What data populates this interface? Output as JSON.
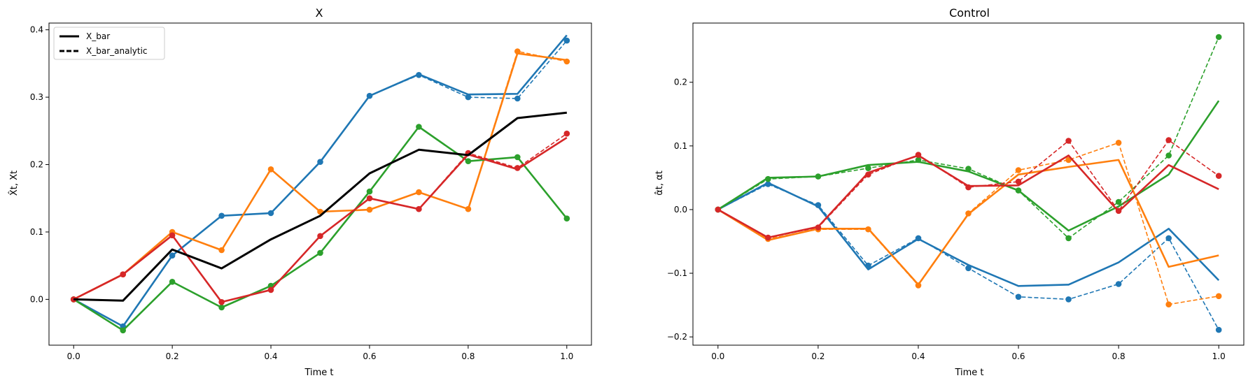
{
  "chart_data": [
    {
      "type": "line",
      "title": "X",
      "xlabel": "Time t",
      "ylabel": "X̂t, Xt",
      "xlim": [
        -0.05,
        1.05
      ],
      "ylim": [
        -0.068,
        0.41
      ],
      "xticks": [
        0.0,
        0.2,
        0.4,
        0.6,
        0.8,
        1.0
      ],
      "xtick_labels": [
        "0.0",
        "0.2",
        "0.4",
        "0.6",
        "0.8",
        "1.0"
      ],
      "yticks": [
        0.0,
        0.1,
        0.2,
        0.3,
        0.4
      ],
      "ytick_labels": [
        "0.0",
        "0.1",
        "0.2",
        "0.3",
        "0.4"
      ],
      "grid": false,
      "legend": {
        "location": "top-left",
        "entries": [
          {
            "label": "X_bar",
            "style": "solid",
            "color": "#000000"
          },
          {
            "label": "X_bar_analytic",
            "style": "dashed",
            "color": "#000000"
          }
        ]
      },
      "x": [
        0.0,
        0.1,
        0.2,
        0.3,
        0.4,
        0.5,
        0.6,
        0.7,
        0.8,
        0.9,
        1.0
      ],
      "series": [
        {
          "color": "#1f77b4",
          "style": "solid",
          "markers": false,
          "values": [
            0.0,
            -0.04,
            0.065,
            0.124,
            0.128,
            0.204,
            0.302,
            0.334,
            0.304,
            0.305,
            0.392
          ]
        },
        {
          "color": "#1f77b4",
          "style": "dashed",
          "markers": true,
          "values": [
            0.0,
            -0.04,
            0.065,
            0.124,
            0.128,
            0.204,
            0.302,
            0.333,
            0.3,
            0.298,
            0.384
          ]
        },
        {
          "color": "#ff7f0e",
          "style": "solid",
          "markers": false,
          "values": [
            0.0,
            0.037,
            0.1,
            0.073,
            0.193,
            0.13,
            0.133,
            0.159,
            0.134,
            0.365,
            0.355
          ]
        },
        {
          "color": "#ff7f0e",
          "style": "dashed",
          "markers": true,
          "values": [
            0.0,
            0.037,
            0.1,
            0.073,
            0.193,
            0.13,
            0.133,
            0.159,
            0.134,
            0.368,
            0.353
          ]
        },
        {
          "color": "#2ca02c",
          "style": "solid",
          "markers": false,
          "values": [
            0.0,
            -0.046,
            0.026,
            -0.012,
            0.02,
            0.069,
            0.16,
            0.256,
            0.205,
            0.211,
            0.12
          ]
        },
        {
          "color": "#2ca02c",
          "style": "dashed",
          "markers": true,
          "values": [
            0.0,
            -0.046,
            0.026,
            -0.012,
            0.02,
            0.069,
            0.16,
            0.256,
            0.205,
            0.211,
            0.12
          ]
        },
        {
          "color": "#d62728",
          "style": "solid",
          "markers": false,
          "values": [
            0.0,
            0.037,
            0.095,
            -0.004,
            0.014,
            0.094,
            0.15,
            0.134,
            0.215,
            0.193,
            0.24
          ]
        },
        {
          "color": "#d62728",
          "style": "dashed",
          "markers": true,
          "values": [
            0.0,
            0.037,
            0.095,
            -0.004,
            0.014,
            0.094,
            0.15,
            0.134,
            0.217,
            0.195,
            0.246
          ]
        },
        {
          "name": "X_bar",
          "color": "#000000",
          "style": "solid",
          "markers": false,
          "width": 3,
          "values": [
            0.0,
            -0.002,
            0.074,
            0.046,
            0.089,
            0.124,
            0.187,
            0.222,
            0.214,
            0.269,
            0.277
          ]
        },
        {
          "name": "X_bar_analytic",
          "color": "#000000",
          "style": "dashed",
          "markers": false,
          "values": [
            0.0,
            -0.002,
            0.074,
            0.046,
            0.089,
            0.124,
            0.187,
            0.222,
            0.214,
            0.269,
            0.277
          ]
        }
      ]
    },
    {
      "type": "line",
      "title": "Control",
      "xlabel": "Time t",
      "ylabel": "α̂t, αt",
      "xlim": [
        -0.05,
        1.05
      ],
      "ylim": [
        -0.213,
        0.293
      ],
      "xticks": [
        0.0,
        0.2,
        0.4,
        0.6,
        0.8,
        1.0
      ],
      "xtick_labels": [
        "0.0",
        "0.2",
        "0.4",
        "0.6",
        "0.8",
        "1.0"
      ],
      "yticks": [
        -0.2,
        -0.1,
        0.0,
        0.1,
        0.2
      ],
      "ytick_labels": [
        "−0.2",
        "−0.1",
        "0.0",
        "0.1",
        "0.2"
      ],
      "grid": false,
      "x": [
        0.0,
        0.1,
        0.2,
        0.3,
        0.4,
        0.5,
        0.6,
        0.7,
        0.8,
        0.9,
        1.0
      ],
      "series": [
        {
          "color": "#1f77b4",
          "style": "solid",
          "markers": false,
          "values": [
            0.0,
            0.042,
            0.005,
            -0.094,
            -0.046,
            -0.087,
            -0.12,
            -0.118,
            -0.083,
            -0.03,
            -0.111
          ]
        },
        {
          "color": "#1f77b4",
          "style": "dashed",
          "markers": true,
          "values": [
            0.0,
            0.04,
            0.007,
            -0.088,
            -0.045,
            -0.092,
            -0.137,
            -0.141,
            -0.117,
            -0.045,
            -0.189
          ]
        },
        {
          "color": "#ff7f0e",
          "style": "solid",
          "markers": false,
          "values": [
            0.0,
            -0.048,
            -0.03,
            -0.03,
            -0.118,
            -0.007,
            0.055,
            0.067,
            0.078,
            -0.09,
            -0.072
          ]
        },
        {
          "color": "#ff7f0e",
          "style": "dashed",
          "markers": true,
          "values": [
            0.0,
            -0.046,
            -0.031,
            -0.031,
            -0.119,
            -0.006,
            0.062,
            0.078,
            0.105,
            -0.149,
            -0.136
          ]
        },
        {
          "color": "#2ca02c",
          "style": "solid",
          "markers": false,
          "values": [
            0.0,
            0.05,
            0.052,
            0.07,
            0.075,
            0.06,
            0.03,
            -0.033,
            0.005,
            0.055,
            0.171
          ]
        },
        {
          "color": "#2ca02c",
          "style": "dashed",
          "markers": true,
          "values": [
            0.0,
            0.048,
            0.052,
            0.065,
            0.078,
            0.064,
            0.03,
            -0.045,
            0.012,
            0.085,
            0.271
          ]
        },
        {
          "color": "#d62728",
          "style": "solid",
          "markers": false,
          "values": [
            0.0,
            -0.044,
            -0.027,
            0.058,
            0.085,
            0.037,
            0.038,
            0.085,
            -0.003,
            0.07,
            0.032
          ]
        },
        {
          "color": "#d62728",
          "style": "dashed",
          "markers": true,
          "values": [
            0.0,
            -0.044,
            -0.028,
            0.055,
            0.086,
            0.035,
            0.044,
            0.108,
            -0.002,
            0.109,
            0.053
          ]
        }
      ]
    }
  ]
}
